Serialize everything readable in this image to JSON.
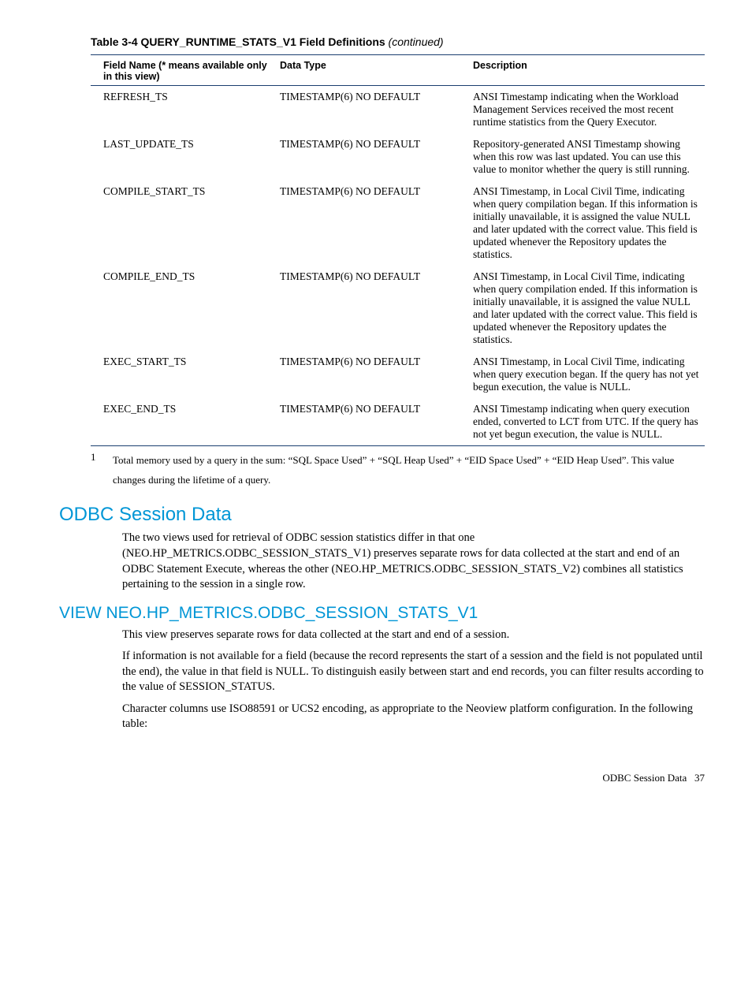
{
  "table": {
    "title_prefix": "Table 3-4 QUERY_RUNTIME_STATS_V1 Field Definitions",
    "title_suffix": "(continued)",
    "headers": {
      "field": "Field Name (* means available only in this view)",
      "type": "Data Type",
      "desc": "Description"
    },
    "rows": [
      {
        "field": "REFRESH_TS",
        "type": "TIMESTAMP(6) NO DEFAULT",
        "desc": "ANSI Timestamp indicating when the Workload Management Services received the most recent runtime statistics from the Query Executor."
      },
      {
        "field": "LAST_UPDATE_TS",
        "type": "TIMESTAMP(6) NO DEFAULT",
        "desc": "Repository-generated ANSI Timestamp showing when this row was last updated. You can use this value to monitor whether the query is still running."
      },
      {
        "field": "COMPILE_START_TS",
        "type": "TIMESTAMP(6) NO DEFAULT",
        "desc": "ANSI Timestamp, in Local Civil Time, indicating when query compilation began. If this information is initially unavailable, it is assigned the value NULL and later updated with the correct value. This field is updated whenever the Repository updates the statistics."
      },
      {
        "field": "COMPILE_END_TS",
        "type": "TIMESTAMP(6) NO DEFAULT",
        "desc": "ANSI Timestamp, in Local Civil Time, indicating when query compilation ended. If this information is initially unavailable, it is assigned the value NULL and later updated with the correct value. This field is updated whenever the Repository updates the statistics."
      },
      {
        "field": "EXEC_START_TS",
        "type": "TIMESTAMP(6) NO DEFAULT",
        "desc": "ANSI Timestamp, in Local Civil Time, indicating when query execution began. If the query has not yet begun execution, the value is NULL."
      },
      {
        "field": "EXEC_END_TS",
        "type": "TIMESTAMP(6) NO DEFAULT",
        "desc": "ANSI Timestamp indicating when query execution ended, converted to LCT from UTC. If the query has not yet begun execution, the value is NULL."
      }
    ],
    "footnote": {
      "num": "1",
      "text": "Total memory used by a query in the sum: “SQL Space Used” + “SQL Heap Used” + “EID Space Used” + “EID Heap Used”. This value changes during the lifetime of a query."
    }
  },
  "section1": {
    "heading": "ODBC Session Data",
    "para": "The two views used for retrieval of ODBC session statistics differ in that one (NEO.HP_METRICS.ODBC_SESSION_STATS_V1) preserves separate rows for data collected at the start and end of an ODBC Statement Execute, whereas the other (NEO.HP_METRICS.ODBC_SESSION_STATS_V2) combines all statistics pertaining to the session in a single row."
  },
  "section2": {
    "heading": "VIEW NEO.HP_METRICS.ODBC_SESSION_STATS_V1",
    "para1": "This view preserves separate rows for data collected at the start and end of a session.",
    "para2": "If information is not available for a field (because the record represents the start of a session and the field is not populated until the end), the value in that field is NULL. To distinguish easily between start and end records, you can filter results according to the value of SESSION_STATUS.",
    "para3": "Character columns use ISO88591 or UCS2 encoding, as appropriate to the Neoview platform configuration. In the following table:"
  },
  "footer": {
    "label": "ODBC Session Data",
    "page": "37"
  }
}
